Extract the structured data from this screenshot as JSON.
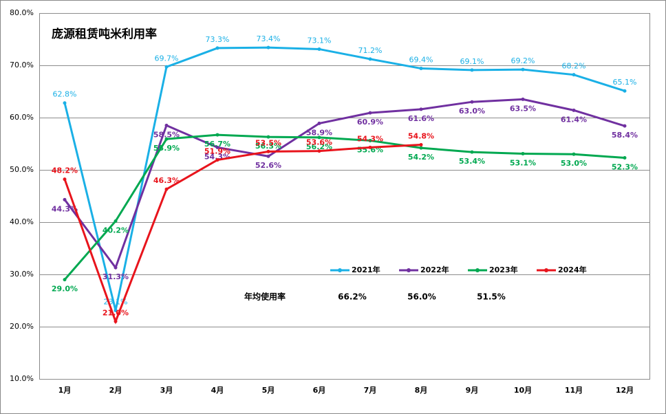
{
  "chart_data": {
    "type": "line",
    "title": "庞源租赁吨米利用率",
    "categories": [
      "1月",
      "2月",
      "3月",
      "4月",
      "5月",
      "6月",
      "7月",
      "8月",
      "9月",
      "10月",
      "11月",
      "12月"
    ],
    "series": [
      {
        "name": "2021年",
        "color": "#1ab0e6",
        "values": [
          62.8,
          23.1,
          69.7,
          73.3,
          73.4,
          73.1,
          71.2,
          69.4,
          69.1,
          69.2,
          68.2,
          65.1
        ],
        "value_labels": [
          "62.8%",
          "23.1%",
          "69.7%",
          "73.3%",
          "73.4%",
          "73.1%",
          "71.2%",
          "69.4%",
          "69.1%",
          "69.2%",
          "68.2%",
          "65.1%"
        ]
      },
      {
        "name": "2022年",
        "color": "#7030a0",
        "values": [
          44.3,
          31.3,
          58.5,
          54.3,
          52.6,
          58.9,
          60.9,
          61.6,
          63.0,
          63.5,
          61.4,
          58.4
        ],
        "value_labels": [
          "44.3%",
          "31.3%",
          "58.5%",
          "54.3%",
          "52.6%",
          "58.9%",
          "60.9%",
          "61.6%",
          "63.0%",
          "63.5%",
          "61.4%",
          "58.4%"
        ]
      },
      {
        "name": "2023年",
        "color": "#00a850",
        "values": [
          29.0,
          40.2,
          55.9,
          56.7,
          56.3,
          56.2,
          55.6,
          54.2,
          53.4,
          53.1,
          53.0,
          52.3
        ],
        "value_labels": [
          "29.0%",
          "40.2%",
          "55.9%",
          "56.7%",
          "56.3%",
          "56.2%",
          "55.6%",
          "54.2%",
          "53.4%",
          "53.1%",
          "53.0%",
          "52.3%"
        ]
      },
      {
        "name": "2024年",
        "color": "#e8141c",
        "values": [
          48.2,
          21.0,
          46.3,
          51.9,
          53.5,
          53.6,
          54.3,
          54.8,
          null,
          null,
          null,
          null
        ],
        "value_labels": [
          "48.2%",
          "21.0%",
          "46.3%",
          "51.9%",
          "53.5%",
          "53.6%",
          "54.3%",
          "54.8%",
          null,
          null,
          null,
          null
        ]
      }
    ],
    "ylim": [
      10,
      80
    ],
    "yticks": [
      {
        "value": 10,
        "label": "10.0%"
      },
      {
        "value": 20,
        "label": "20.0%"
      },
      {
        "value": 30,
        "label": "30.0%"
      },
      {
        "value": 40,
        "label": "40.0%"
      },
      {
        "value": 50,
        "label": "50.0%"
      },
      {
        "value": 60,
        "label": "60.0%"
      },
      {
        "value": 70,
        "label": "70.0%"
      },
      {
        "value": 80,
        "label": "80.0%"
      }
    ],
    "grid": true,
    "annotations": [
      {
        "label": "年均使用率",
        "values": [
          "66.2%",
          "56.0%",
          "51.5%"
        ]
      }
    ]
  }
}
